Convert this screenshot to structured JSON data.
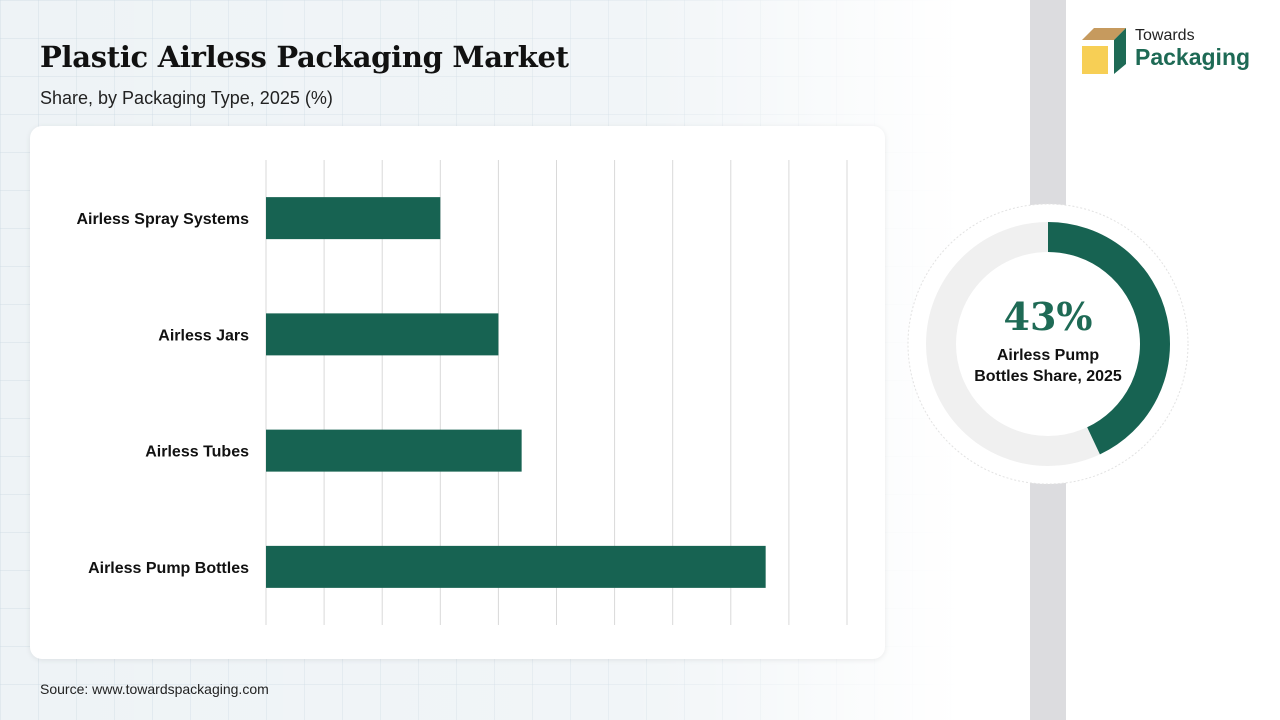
{
  "title": "Plastic Airless Packaging Market",
  "subtitle": "Share, by Packaging Type, 2025 (%)",
  "source": "Source: www.towardspackaging.com",
  "logo": {
    "line1": "Towards",
    "line2": "Packaging"
  },
  "colors": {
    "bar": "#176352",
    "donut_track": "#f0f0f0",
    "accent_text": "#1e6a55"
  },
  "donut": {
    "value_label": "43%",
    "value": 43,
    "caption_line1": "Airless Pump",
    "caption_line2": "Bottles Share, 2025"
  },
  "chart_data": {
    "type": "bar",
    "orientation": "horizontal",
    "categories": [
      "Airless Spray Systems",
      "Airless Jars",
      "Airless Tubes",
      "Airless Pump Bottles"
    ],
    "values": [
      15,
      20,
      22,
      43
    ],
    "xlim": [
      0,
      50
    ],
    "grid": true,
    "title": "",
    "xlabel": "",
    "ylabel": ""
  }
}
